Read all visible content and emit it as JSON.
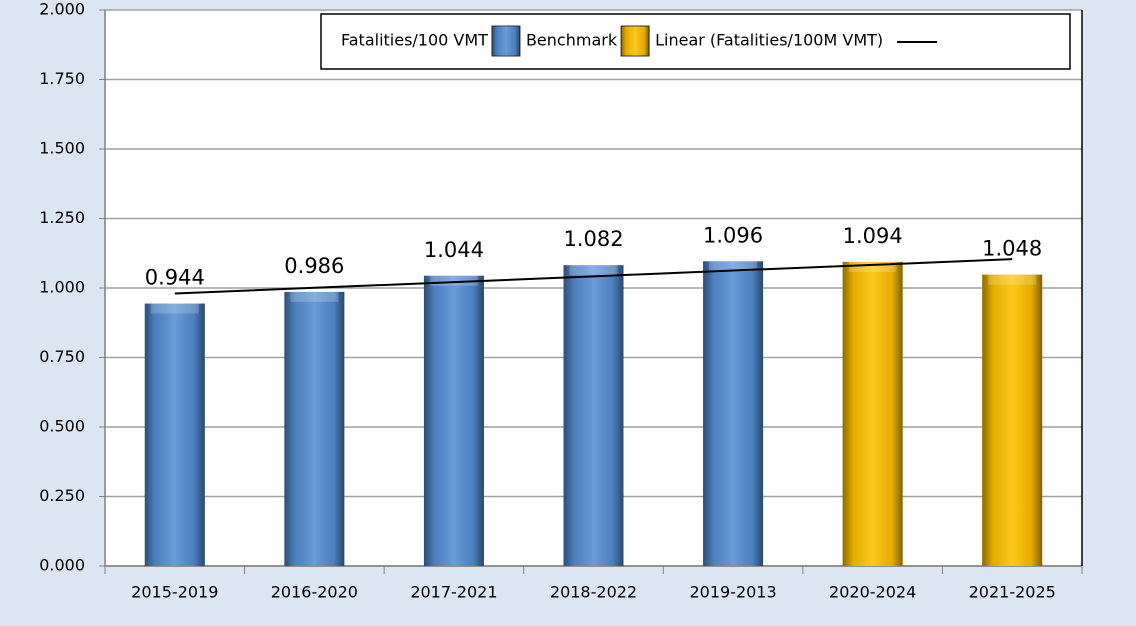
{
  "chart_data": {
    "type": "bar",
    "categories": [
      "2015-2019",
      "2016-2020",
      "2017-2021",
      "2018-2022",
      "2019-2013",
      "2020-2024",
      "2021-2025"
    ],
    "series": [
      {
        "name": "Fatalities/100 VMT",
        "type": "bar",
        "color": "#558ed5",
        "values": [
          0.944,
          0.986,
          1.044,
          1.082,
          1.096,
          null,
          null
        ]
      },
      {
        "name": "Benchmark",
        "type": "bar",
        "color": "#ffc000",
        "values": [
          null,
          null,
          null,
          null,
          null,
          1.094,
          1.048
        ]
      },
      {
        "name": "Linear (Fatalities/100M VMT)",
        "type": "line",
        "color": "#000000",
        "values": [
          0.98,
          1.001,
          1.021,
          1.042,
          1.063,
          1.083,
          1.104
        ]
      }
    ],
    "ylim": [
      0,
      2
    ],
    "yticks": [
      {
        "value": 0,
        "label": "0.000"
      },
      {
        "value": 0.25,
        "label": "0.250"
      },
      {
        "value": 0.5,
        "label": "0.500"
      },
      {
        "value": 0.75,
        "label": "0.750"
      },
      {
        "value": 1,
        "label": "1.000"
      },
      {
        "value": 1.25,
        "label": "1.250"
      },
      {
        "value": 1.5,
        "label": "1.500"
      },
      {
        "value": 1.75,
        "label": "1.750"
      },
      {
        "value": 2,
        "label": "2.000"
      }
    ],
    "grid": true,
    "legend": "top-right"
  }
}
